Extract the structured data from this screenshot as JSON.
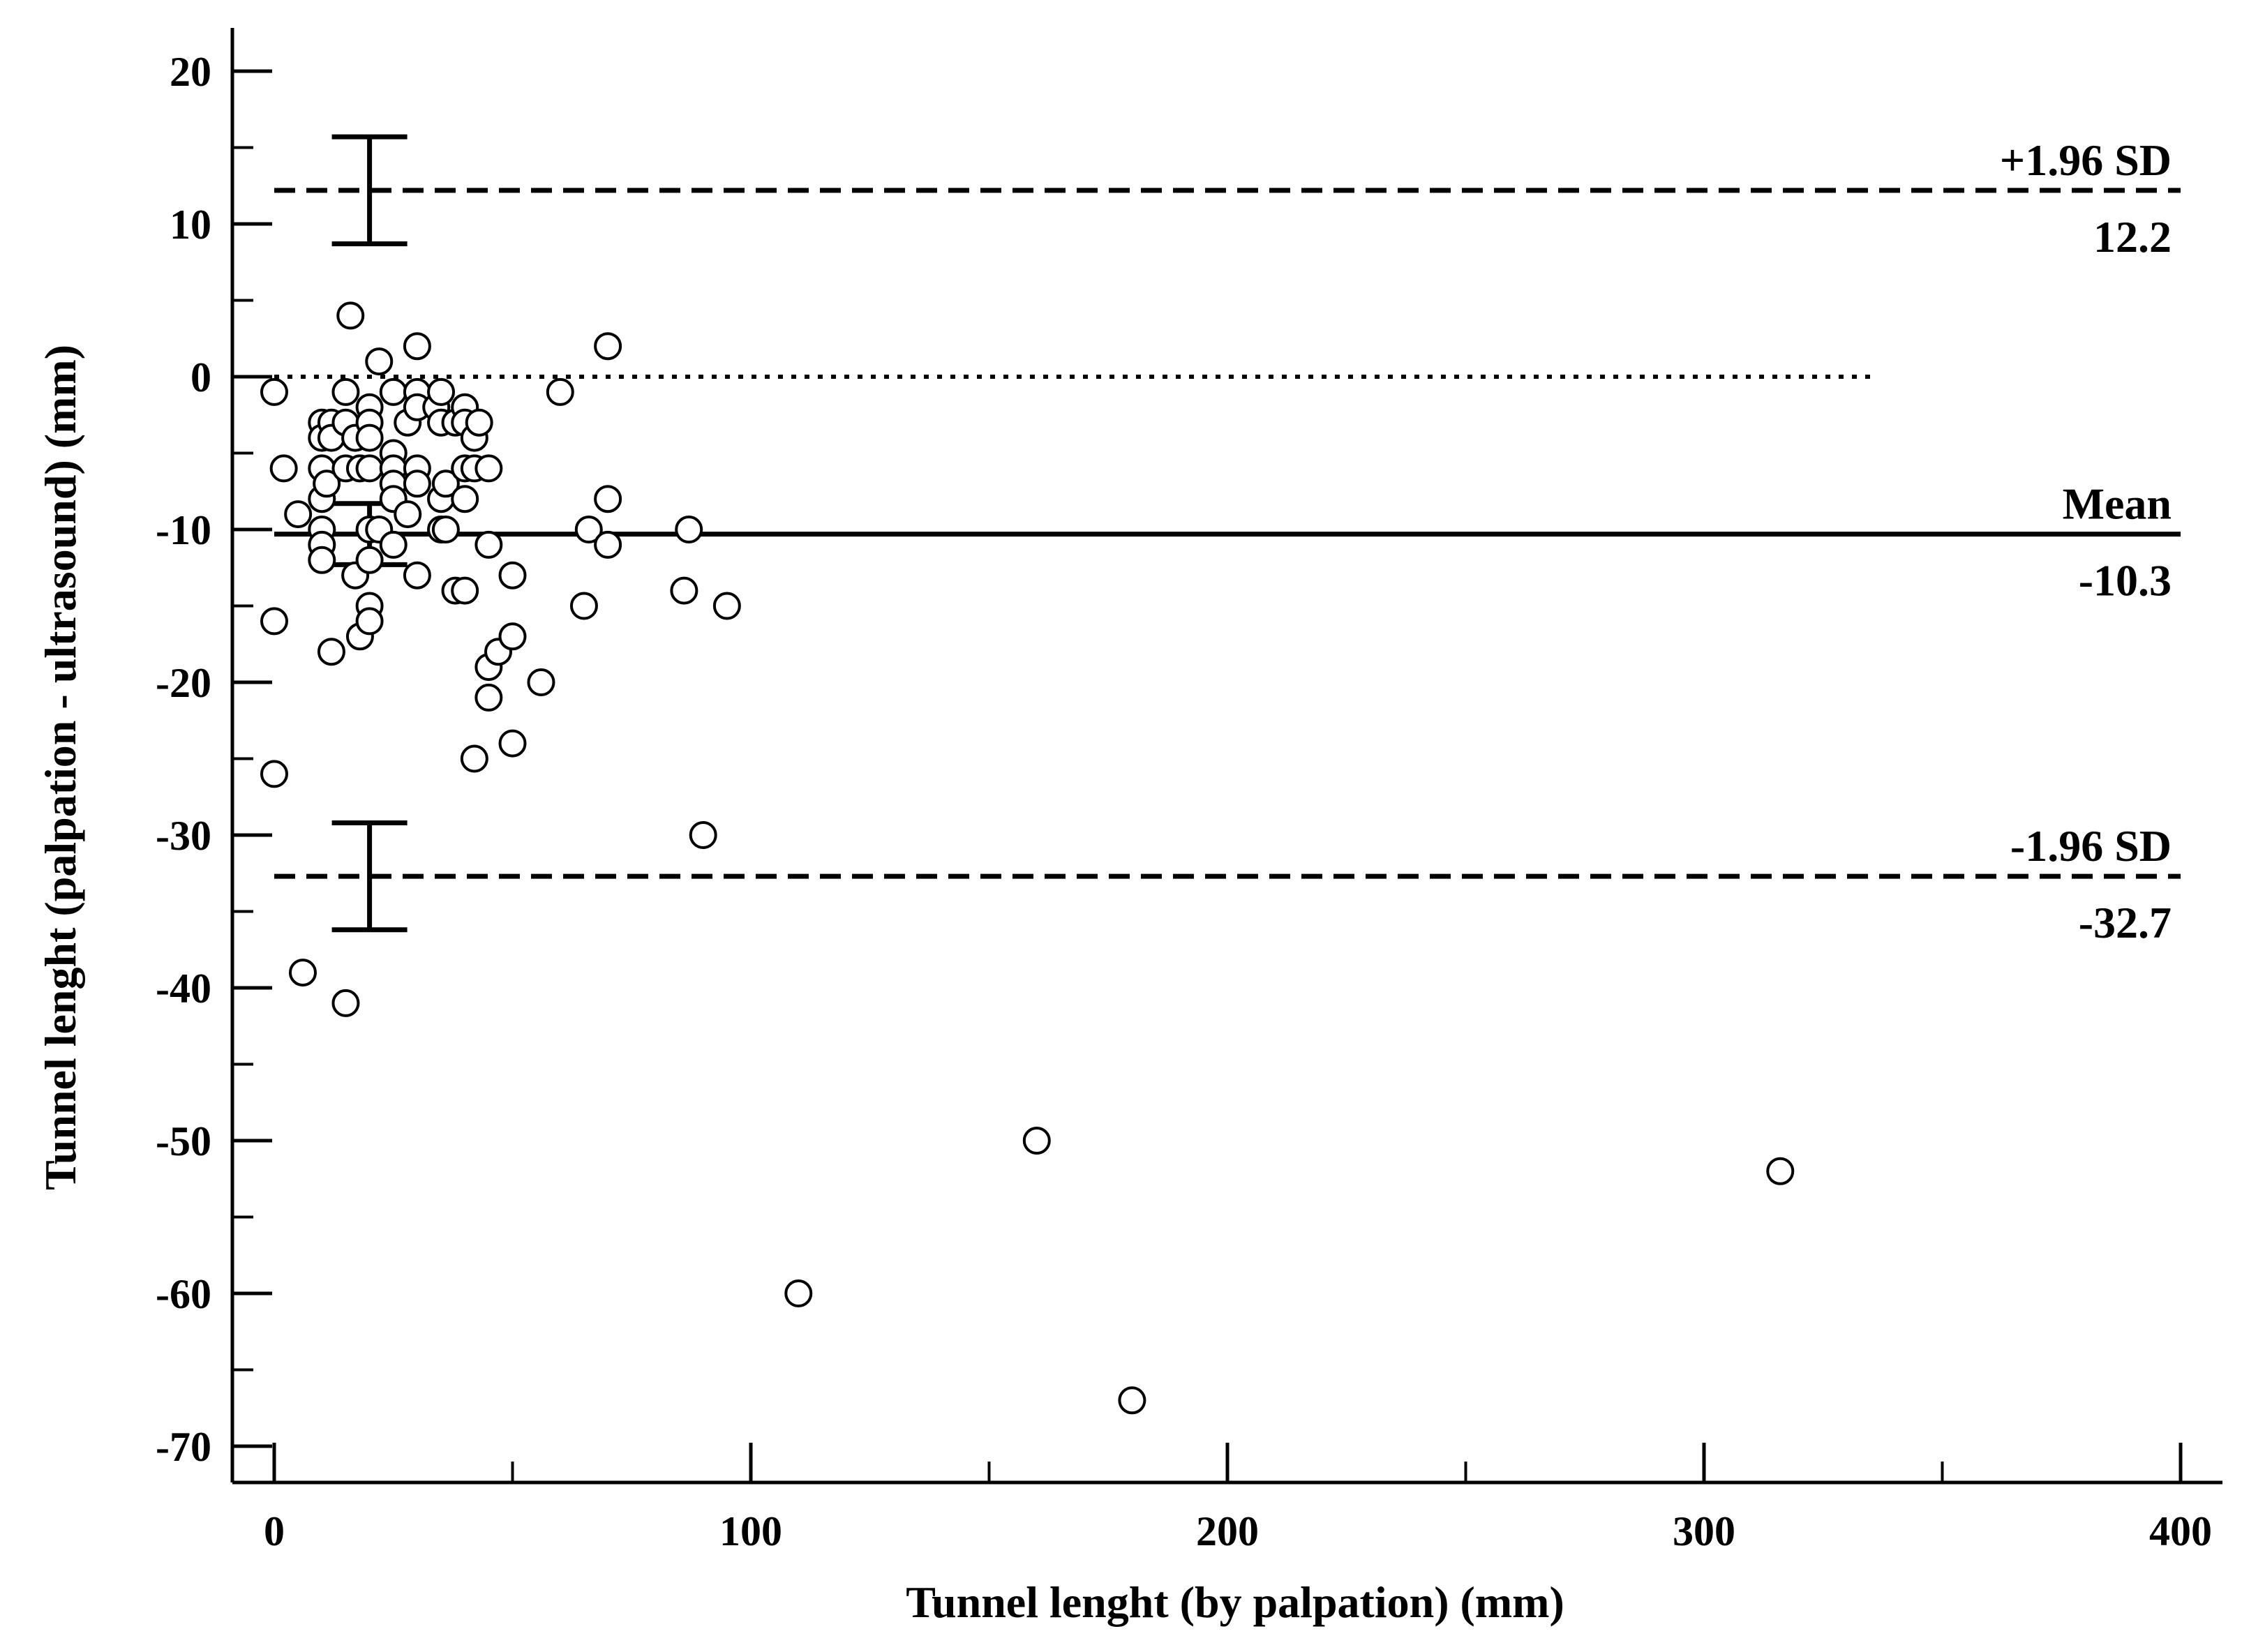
{
  "chart_data": {
    "type": "scatter",
    "title": "",
    "xlabel": "Tunnel lenght (by palpation) (mm)",
    "ylabel": "Tunnel lenght (palpation - ultrasound) (mm)",
    "xlim": [
      -9,
      408
    ],
    "ylim": [
      -72.5,
      22.5
    ],
    "x_ticks": [
      0,
      100,
      200,
      300,
      400
    ],
    "x_tick_labels": [
      "0",
      "100",
      "200",
      "300",
      "400"
    ],
    "x_minor_ticks": [
      50,
      150,
      250,
      350
    ],
    "y_ticks": [
      20,
      10,
      0,
      -10,
      -20,
      -30,
      -40,
      -50,
      -60,
      -70
    ],
    "y_tick_labels": [
      "20",
      "10",
      "0",
      "-10",
      "-20",
      "-30",
      "-40",
      "-50",
      "-60",
      "-70"
    ],
    "y_minor_ticks": [
      15,
      5,
      -5,
      -15,
      -25,
      -35,
      -45,
      -55,
      -65
    ],
    "grid": false,
    "reference_lines": [
      {
        "name": "upper-limit",
        "label": "+1.96 SD",
        "value_label": "12.2",
        "y": 12.2,
        "style": "dashed"
      },
      {
        "name": "mean",
        "label": "Mean",
        "value_label": "-10.3",
        "y": -10.3,
        "style": "solid"
      },
      {
        "name": "lower-limit",
        "label": "-1.96 SD",
        "value_label": "-32.7",
        "y": -32.7,
        "style": "dashed"
      },
      {
        "name": "zero",
        "label": "",
        "value_label": "",
        "y": 0,
        "style": "dotted",
        "x_end": 335
      }
    ],
    "confidence_intervals": [
      {
        "name": "ci-upper-limit",
        "x": 20,
        "low": 8.7,
        "high": 15.7
      },
      {
        "name": "ci-mean",
        "x": 20,
        "low": -12.3,
        "high": -8.3
      },
      {
        "name": "ci-lower-limit",
        "x": 20,
        "low": -36.2,
        "high": -29.2
      }
    ],
    "series": [
      {
        "name": "differences",
        "points": [
          [
            0,
            -1
          ],
          [
            2,
            -6
          ],
          [
            0,
            -16
          ],
          [
            0,
            -26
          ],
          [
            5,
            -9
          ],
          [
            6,
            -39
          ],
          [
            10,
            -3
          ],
          [
            10,
            -4
          ],
          [
            10,
            -6
          ],
          [
            10,
            -8
          ],
          [
            10,
            -10
          ],
          [
            10,
            -11
          ],
          [
            10,
            -12
          ],
          [
            11,
            -7
          ],
          [
            12,
            -3
          ],
          [
            12,
            -4
          ],
          [
            12,
            -18
          ],
          [
            15,
            -1
          ],
          [
            15,
            -3
          ],
          [
            15,
            -6
          ],
          [
            15,
            -41
          ],
          [
            16,
            4
          ],
          [
            17,
            -4
          ],
          [
            17,
            -13
          ],
          [
            18,
            -6
          ],
          [
            18,
            -17
          ],
          [
            20,
            -2
          ],
          [
            20,
            -3
          ],
          [
            20,
            -4
          ],
          [
            20,
            -6
          ],
          [
            20,
            -10
          ],
          [
            20,
            -12
          ],
          [
            20,
            -15
          ],
          [
            20,
            -16
          ],
          [
            22,
            1
          ],
          [
            22,
            -10
          ],
          [
            25,
            -1
          ],
          [
            25,
            -5
          ],
          [
            25,
            -6
          ],
          [
            25,
            -7
          ],
          [
            25,
            -8
          ],
          [
            25,
            -11
          ],
          [
            28,
            -3
          ],
          [
            28,
            -9
          ],
          [
            30,
            2
          ],
          [
            30,
            -1
          ],
          [
            30,
            -2
          ],
          [
            30,
            -6
          ],
          [
            30,
            -7
          ],
          [
            30,
            -13
          ],
          [
            34,
            -2
          ],
          [
            35,
            -1
          ],
          [
            35,
            -3
          ],
          [
            35,
            -8
          ],
          [
            35,
            -10
          ],
          [
            36,
            -7
          ],
          [
            36,
            -10
          ],
          [
            38,
            -3
          ],
          [
            38,
            -14
          ],
          [
            40,
            -2
          ],
          [
            40,
            -3
          ],
          [
            40,
            -6
          ],
          [
            40,
            -8
          ],
          [
            40,
            -14
          ],
          [
            42,
            -4
          ],
          [
            42,
            -6
          ],
          [
            42,
            -25
          ],
          [
            43,
            -3
          ],
          [
            45,
            -6
          ],
          [
            45,
            -11
          ],
          [
            45,
            -19
          ],
          [
            45,
            -21
          ],
          [
            47,
            -18
          ],
          [
            50,
            -13
          ],
          [
            50,
            -17
          ],
          [
            50,
            -24
          ],
          [
            56,
            -20
          ],
          [
            60,
            -1
          ],
          [
            65,
            -15
          ],
          [
            66,
            -10
          ],
          [
            70,
            2
          ],
          [
            70,
            -8
          ],
          [
            70,
            -11
          ],
          [
            86,
            -14
          ],
          [
            87,
            -10
          ],
          [
            90,
            -30
          ],
          [
            95,
            -15
          ],
          [
            110,
            -60
          ],
          [
            160,
            -50
          ],
          [
            180,
            -67
          ],
          [
            316,
            -52
          ]
        ]
      }
    ]
  }
}
